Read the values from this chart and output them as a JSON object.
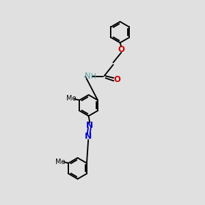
{
  "bg_color": "#e0e0e0",
  "black": "#000000",
  "blue": "#0000cc",
  "red": "#cc0000",
  "teal": "#5f9ea0",
  "lw": 1.4,
  "ring_r": 0.72,
  "xlim": [
    0,
    10
  ],
  "ylim": [
    0,
    14
  ]
}
